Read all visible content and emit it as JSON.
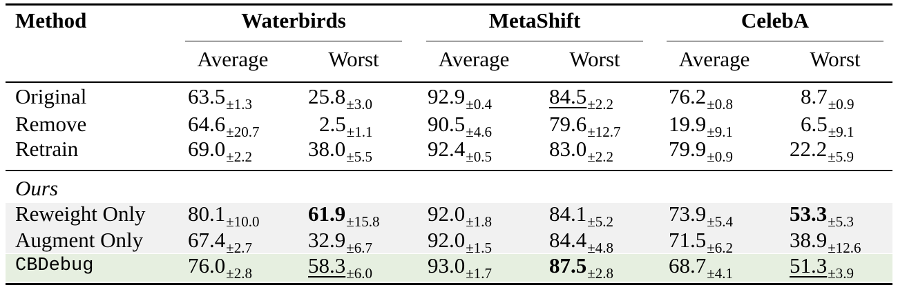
{
  "table": {
    "method_header": "Method",
    "groups": [
      "Waterbirds",
      "MetaShift",
      "CelebA"
    ],
    "subheaders": [
      "Average",
      "Worst",
      "Average",
      "Worst",
      "Average",
      "Worst"
    ],
    "section_label": "Ours",
    "rows": [
      {
        "method": "Original",
        "cells": [
          {
            "v": "63.5",
            "sd": "±1.3",
            "style": ""
          },
          {
            "v": "25.8",
            "sd": "±3.0",
            "style": ""
          },
          {
            "v": "92.9",
            "sd": "±0.4",
            "style": ""
          },
          {
            "v": "84.5",
            "sd": "±2.2",
            "style": "underline"
          },
          {
            "v": "76.2",
            "sd": "±0.8",
            "style": ""
          },
          {
            "v": "8.7",
            "sd": "±0.9",
            "style": ""
          }
        ]
      },
      {
        "method": "Remove",
        "cells": [
          {
            "v": "64.6",
            "sd": "±20.7",
            "style": ""
          },
          {
            "v": "2.5",
            "sd": "±1.1",
            "style": ""
          },
          {
            "v": "90.5",
            "sd": "±4.6",
            "style": ""
          },
          {
            "v": "79.6",
            "sd": "±12.7",
            "style": ""
          },
          {
            "v": "19.9",
            "sd": "±9.1",
            "style": ""
          },
          {
            "v": "6.5",
            "sd": "±9.1",
            "style": ""
          }
        ]
      },
      {
        "method": "Retrain",
        "cells": [
          {
            "v": "69.0",
            "sd": "±2.2",
            "style": ""
          },
          {
            "v": "38.0",
            "sd": "±5.5",
            "style": ""
          },
          {
            "v": "92.4",
            "sd": "±0.5",
            "style": ""
          },
          {
            "v": "83.0",
            "sd": "±2.2",
            "style": ""
          },
          {
            "v": "79.9",
            "sd": "±0.9",
            "style": ""
          },
          {
            "v": "22.2",
            "sd": "±5.9",
            "style": ""
          }
        ]
      },
      {
        "method": "Reweight Only",
        "cells": [
          {
            "v": "80.1",
            "sd": "±10.0",
            "style": ""
          },
          {
            "v": "61.9",
            "sd": "±15.8",
            "style": "bold"
          },
          {
            "v": "92.0",
            "sd": "±1.8",
            "style": ""
          },
          {
            "v": "84.1",
            "sd": "±5.2",
            "style": ""
          },
          {
            "v": "73.9",
            "sd": "±5.4",
            "style": ""
          },
          {
            "v": "53.3",
            "sd": "±5.3",
            "style": "bold"
          }
        ]
      },
      {
        "method": "Augment Only",
        "cells": [
          {
            "v": "67.4",
            "sd": "±2.7",
            "style": ""
          },
          {
            "v": "32.9",
            "sd": "±6.7",
            "style": ""
          },
          {
            "v": "92.0",
            "sd": "±1.5",
            "style": ""
          },
          {
            "v": "84.4",
            "sd": "±4.8",
            "style": ""
          },
          {
            "v": "71.5",
            "sd": "±6.2",
            "style": ""
          },
          {
            "v": "38.9",
            "sd": "±12.6",
            "style": ""
          }
        ]
      },
      {
        "method": "CBDebug",
        "cells": [
          {
            "v": "76.0",
            "sd": "±2.8",
            "style": ""
          },
          {
            "v": "58.3",
            "sd": "±6.0",
            "style": "underline"
          },
          {
            "v": "93.0",
            "sd": "±1.7",
            "style": ""
          },
          {
            "v": "87.5",
            "sd": "±2.8",
            "style": "bold"
          },
          {
            "v": "68.7",
            "sd": "±4.1",
            "style": ""
          },
          {
            "v": "51.3",
            "sd": "±3.9",
            "style": "underline"
          }
        ]
      }
    ]
  }
}
